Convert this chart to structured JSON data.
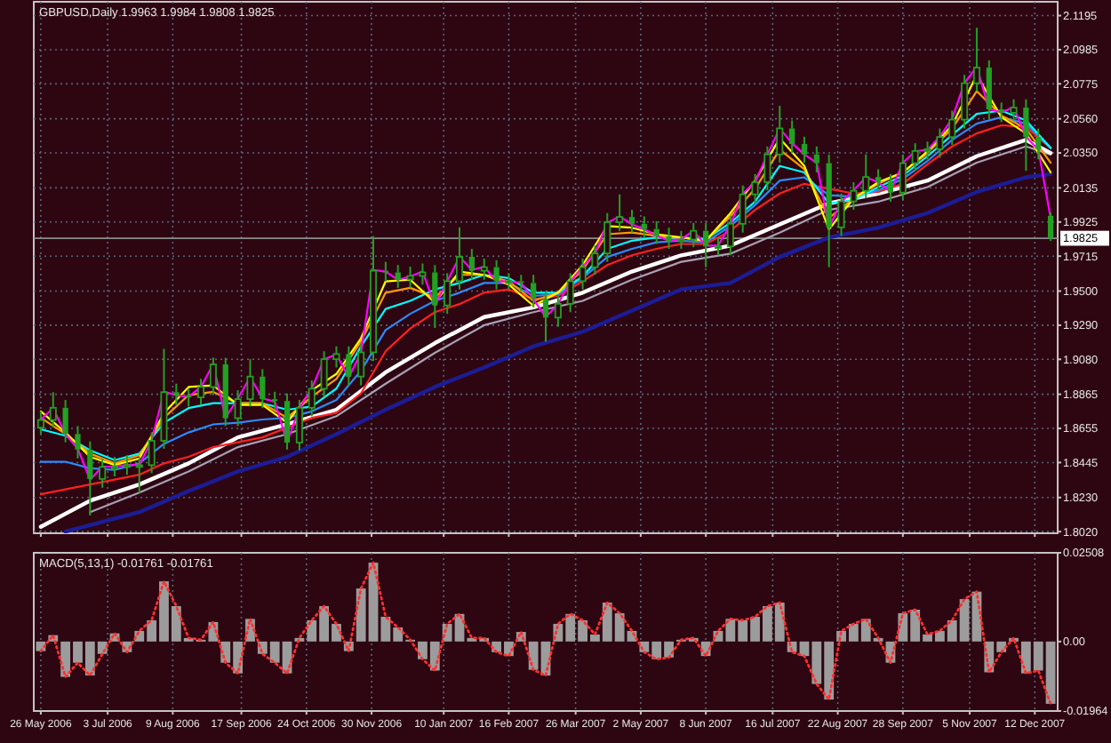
{
  "chart_data": [
    {
      "type": "candlestick",
      "title": "GBPUSD,Daily 1.9963 1.9984 1.9808 1.9825",
      "color": "#22a022",
      "x": [
        "2006-05-26",
        "2006-06-02",
        "2006-06-09",
        "2006-06-16",
        "2006-06-23",
        "2006-06-30",
        "2006-07-07",
        "2006-07-14",
        "2006-07-21",
        "2006-07-28",
        "2006-08-04",
        "2006-08-11",
        "2006-08-18",
        "2006-08-25",
        "2006-09-01",
        "2006-09-08",
        "2006-09-15",
        "2006-09-22",
        "2006-09-29",
        "2006-10-06",
        "2006-10-13",
        "2006-10-20",
        "2006-10-27",
        "2006-11-03",
        "2006-11-10",
        "2006-11-17",
        "2006-11-24",
        "2006-12-01",
        "2006-12-08",
        "2006-12-15",
        "2006-12-22",
        "2006-12-29",
        "2007-01-05",
        "2007-01-12",
        "2007-01-19",
        "2007-01-26",
        "2007-02-02",
        "2007-02-09",
        "2007-02-16",
        "2007-02-23",
        "2007-03-02",
        "2007-03-09",
        "2007-03-16",
        "2007-03-23",
        "2007-03-30",
        "2007-04-06",
        "2007-04-13",
        "2007-04-20",
        "2007-04-27",
        "2007-05-04",
        "2007-05-11",
        "2007-05-18",
        "2007-05-25",
        "2007-06-01",
        "2007-06-08",
        "2007-06-15",
        "2007-06-22",
        "2007-06-29",
        "2007-07-06",
        "2007-07-13",
        "2007-07-20",
        "2007-07-27",
        "2007-08-03",
        "2007-08-10",
        "2007-08-17",
        "2007-08-24",
        "2007-08-31",
        "2007-09-07",
        "2007-09-14",
        "2007-09-21",
        "2007-09-28",
        "2007-10-05",
        "2007-10-12",
        "2007-10-19",
        "2007-10-26",
        "2007-11-02",
        "2007-11-09",
        "2007-11-16",
        "2007-11-23",
        "2007-11-30",
        "2007-12-07",
        "2007-12-14",
        "2007-12-21"
      ],
      "ohlc": [
        [
          1.866,
          1.876,
          1.862,
          1.8707
        ],
        [
          1.8707,
          1.8878,
          1.866,
          1.8782
        ],
        [
          1.8782,
          1.883,
          1.857,
          1.8621
        ],
        [
          1.8621,
          1.867,
          1.847,
          1.8525
        ],
        [
          1.8525,
          1.8575,
          1.8119,
          1.8344
        ],
        [
          1.8344,
          1.847,
          1.829,
          1.8418
        ],
        [
          1.8418,
          1.848,
          1.836,
          1.8418
        ],
        [
          1.8418,
          1.849,
          1.837,
          1.8429
        ],
        [
          1.8429,
          1.848,
          1.8258,
          1.8429
        ],
        [
          1.8429,
          1.863,
          1.838,
          1.8579
        ],
        [
          1.8579,
          1.9145,
          1.853,
          1.8878
        ],
        [
          1.8878,
          1.893,
          1.88,
          1.8856
        ],
        [
          1.8856,
          1.89,
          1.879,
          1.8846
        ],
        [
          1.8846,
          1.896,
          1.88,
          1.891
        ],
        [
          1.891,
          1.9091,
          1.886,
          1.9049
        ],
        [
          1.9049,
          1.909,
          1.867,
          1.8718
        ],
        [
          1.8718,
          1.889,
          1.867,
          1.8835
        ],
        [
          1.8835,
          1.9081,
          1.879,
          1.8974
        ],
        [
          1.8974,
          1.902,
          1.878,
          1.8835
        ],
        [
          1.8835,
          1.888,
          1.877,
          1.8824
        ],
        [
          1.8824,
          1.887,
          1.8525,
          1.8568
        ],
        [
          1.8568,
          1.883,
          1.852,
          1.8782
        ],
        [
          1.8782,
          1.895,
          1.873,
          1.8899
        ],
        [
          1.8899,
          1.913,
          1.885,
          1.9081
        ],
        [
          1.9081,
          1.916,
          1.903,
          1.9113
        ],
        [
          1.9113,
          1.916,
          1.892,
          1.8974
        ],
        [
          1.8974,
          1.918,
          1.892,
          1.9123
        ],
        [
          1.9123,
          1.9839,
          1.907,
          1.9625
        ],
        [
          1.9625,
          1.968,
          1.956,
          1.9615
        ],
        [
          1.9615,
          1.966,
          1.952,
          1.9572
        ],
        [
          1.9572,
          1.965,
          1.952,
          1.9593
        ],
        [
          1.9593,
          1.967,
          1.954,
          1.9615
        ],
        [
          1.9615,
          1.966,
          1.9273,
          1.9412
        ],
        [
          1.9412,
          1.961,
          1.936,
          1.9561
        ],
        [
          1.9561,
          1.9892,
          1.951,
          1.9711
        ],
        [
          1.9711,
          1.976,
          1.957,
          1.9625
        ],
        [
          1.9625,
          1.97,
          1.957,
          1.9647
        ],
        [
          1.9647,
          1.969,
          1.951,
          1.9561
        ],
        [
          1.9561,
          1.961,
          1.951,
          1.9561
        ],
        [
          1.9561,
          1.96,
          1.95,
          1.955
        ],
        [
          1.955,
          1.96,
          1.94,
          1.9454
        ],
        [
          1.9454,
          1.95,
          1.9188,
          1.9337
        ],
        [
          1.9337,
          1.947,
          1.928,
          1.9422
        ],
        [
          1.9422,
          1.961,
          1.937,
          1.9561
        ],
        [
          1.9561,
          1.97,
          1.951,
          1.9647
        ],
        [
          1.9647,
          1.978,
          1.96,
          1.9732
        ],
        [
          1.9732,
          1.998,
          1.968,
          1.9924
        ],
        [
          1.9924,
          2.0095,
          1.987,
          1.9956
        ],
        [
          1.9956,
          2.0,
          1.986,
          1.9914
        ],
        [
          1.9914,
          1.996,
          1.983,
          1.9882
        ],
        [
          1.9882,
          1.993,
          1.979,
          1.9839
        ],
        [
          1.9839,
          1.989,
          1.976,
          1.9807
        ],
        [
          1.9807,
          1.987,
          1.976,
          1.9817
        ],
        [
          1.9817,
          1.992,
          1.977,
          1.9871
        ],
        [
          1.9871,
          1.992,
          1.9647,
          1.9775
        ],
        [
          1.9775,
          1.983,
          1.972,
          1.9775
        ],
        [
          1.9775,
          1.996,
          1.972,
          1.9914
        ],
        [
          1.9914,
          2.015,
          1.986,
          2.0095
        ],
        [
          2.0095,
          2.022,
          2.004,
          2.017
        ],
        [
          2.017,
          2.039,
          2.012,
          2.0341
        ],
        [
          2.0341,
          2.064,
          2.029,
          2.0501
        ],
        [
          2.0501,
          2.055,
          2.035,
          2.0405
        ],
        [
          2.0405,
          2.045,
          2.029,
          2.0341
        ],
        [
          2.0341,
          2.039,
          2.023,
          2.0287
        ],
        [
          2.0287,
          2.034,
          1.9647,
          1.9892
        ],
        [
          1.9892,
          2.01,
          1.984,
          2.0052
        ],
        [
          2.0052,
          2.017,
          2.0,
          2.0117
        ],
        [
          2.0117,
          2.0341,
          2.007,
          2.0202
        ],
        [
          2.0202,
          2.025,
          2.012,
          2.017
        ],
        [
          2.017,
          2.022,
          2.005,
          2.0106
        ],
        [
          2.0106,
          2.034,
          2.006,
          2.0287
        ],
        [
          2.0287,
          2.041,
          2.024,
          2.0362
        ],
        [
          2.0362,
          2.042,
          2.031,
          2.0373
        ],
        [
          2.0373,
          2.05,
          2.032,
          2.0448
        ],
        [
          2.0448,
          2.061,
          2.04,
          2.0555
        ],
        [
          2.0555,
          2.083,
          2.05,
          2.0779
        ],
        [
          2.0779,
          2.112,
          2.073,
          2.0875
        ],
        [
          2.0875,
          2.092,
          2.056,
          2.0618
        ],
        [
          2.0618,
          2.066,
          2.054,
          2.0597
        ],
        [
          2.0597,
          2.068,
          2.055,
          2.0629
        ],
        [
          2.0629,
          2.068,
          2.024,
          2.0448
        ],
        [
          2.0448,
          2.05,
          2.031,
          2.0373
        ],
        [
          1.9963,
          1.9984,
          1.9808,
          1.9825
        ]
      ],
      "series": [
        {
          "type": "line",
          "color": "#1c1c96",
          "x": [
            "2006-06-09",
            "2006-06-23",
            "2006-07-21",
            "2006-08-18",
            "2006-09-15",
            "2006-10-13",
            "2006-11-10",
            "2006-12-08",
            "2007-01-05",
            "2007-02-02",
            "2007-03-02",
            "2007-03-30",
            "2007-04-27",
            "2007-05-25",
            "2007-06-22",
            "2007-07-20",
            "2007-08-17",
            "2007-09-14",
            "2007-10-12",
            "2007-11-09",
            "2007-12-07",
            "2007-12-21"
          ],
          "values": [
            1.802,
            1.806,
            1.814,
            1.827,
            1.839,
            1.848,
            1.862,
            1.877,
            1.891,
            1.903,
            1.916,
            1.925,
            1.938,
            1.951,
            1.955,
            1.971,
            1.983,
            1.989,
            1.998,
            2.011,
            2.02,
            2.022
          ]
        },
        {
          "type": "line",
          "color": "#a8a0b4",
          "x": [
            "2006-06-23",
            "2006-07-21",
            "2006-08-18",
            "2006-09-15",
            "2006-10-13",
            "2006-11-10",
            "2006-12-08",
            "2007-01-05",
            "2007-02-02",
            "2007-03-02",
            "2007-03-30",
            "2007-04-27",
            "2007-05-25",
            "2007-06-22",
            "2007-07-20",
            "2007-08-17",
            "2007-09-14",
            "2007-10-12",
            "2007-11-09",
            "2007-12-07",
            "2007-12-21"
          ],
          "values": [
            1.814,
            1.826,
            1.839,
            1.854,
            1.862,
            1.873,
            1.893,
            1.912,
            1.929,
            1.937,
            1.944,
            1.957,
            1.968,
            1.973,
            1.986,
            2.0,
            2.005,
            2.014,
            2.029,
            2.039,
            2.034
          ]
        },
        {
          "type": "line",
          "color": "#ffffff",
          "x": [
            "2006-05-26",
            "2006-06-23",
            "2006-07-21",
            "2006-08-18",
            "2006-09-15",
            "2006-10-13",
            "2006-11-10",
            "2006-12-08",
            "2007-01-05",
            "2007-02-02",
            "2007-03-02",
            "2007-03-30",
            "2007-04-27",
            "2007-05-25",
            "2007-06-22",
            "2007-07-20",
            "2007-08-17",
            "2007-09-14",
            "2007-10-12",
            "2007-11-09",
            "2007-12-07",
            "2007-12-21"
          ],
          "values": [
            1.805,
            1.821,
            1.831,
            1.844,
            1.86,
            1.868,
            1.877,
            1.9,
            1.918,
            1.934,
            1.94,
            1.949,
            1.962,
            1.972,
            1.978,
            1.991,
            2.004,
            2.01,
            2.018,
            2.033,
            2.043,
            2.035
          ]
        },
        {
          "type": "line",
          "color": "#ff2020",
          "x": [
            "2006-05-26",
            "2006-06-09",
            "2006-06-23",
            "2006-07-07",
            "2006-07-21",
            "2006-08-04",
            "2006-08-18",
            "2006-09-01",
            "2006-09-15",
            "2006-09-29",
            "2006-10-13",
            "2006-10-27",
            "2006-11-10",
            "2006-11-24",
            "2006-12-08",
            "2006-12-22",
            "2007-01-05",
            "2007-01-19",
            "2007-02-02",
            "2007-02-16",
            "2007-03-02",
            "2007-03-16",
            "2007-03-30",
            "2007-04-13",
            "2007-04-27",
            "2007-05-11",
            "2007-05-25",
            "2007-06-08",
            "2007-06-22",
            "2007-07-06",
            "2007-07-20",
            "2007-08-03",
            "2007-08-17",
            "2007-08-31",
            "2007-09-14",
            "2007-09-28",
            "2007-10-12",
            "2007-10-26",
            "2007-11-09",
            "2007-11-23",
            "2007-12-07",
            "2007-12-21"
          ],
          "values": [
            1.825,
            1.828,
            1.831,
            1.834,
            1.837,
            1.844,
            1.848,
            1.854,
            1.857,
            1.86,
            1.866,
            1.872,
            1.875,
            1.887,
            1.913,
            1.927,
            1.937,
            1.942,
            1.949,
            1.951,
            1.945,
            1.947,
            1.956,
            1.966,
            1.972,
            1.976,
            1.979,
            1.979,
            1.987,
            2.0,
            2.01,
            2.016,
            2.013,
            2.01,
            2.011,
            2.016,
            2.028,
            2.039,
            2.047,
            2.052,
            2.051,
            2.038
          ]
        },
        {
          "type": "line",
          "color": "#2a8cff",
          "x": [
            "2006-05-26",
            "2006-06-09",
            "2006-06-23",
            "2006-07-07",
            "2006-07-21",
            "2006-08-04",
            "2006-08-18",
            "2006-09-01",
            "2006-09-15",
            "2006-09-29",
            "2006-10-13",
            "2006-10-27",
            "2006-11-10",
            "2006-11-24",
            "2006-12-08",
            "2006-12-22",
            "2007-01-05",
            "2007-01-19",
            "2007-02-02",
            "2007-02-16",
            "2007-03-02",
            "2007-03-16",
            "2007-03-30",
            "2007-04-13",
            "2007-04-27",
            "2007-05-11",
            "2007-05-25",
            "2007-06-08",
            "2007-06-22",
            "2007-07-06",
            "2007-07-20",
            "2007-08-03",
            "2007-08-17",
            "2007-08-31",
            "2007-09-14",
            "2007-09-28",
            "2007-10-12",
            "2007-10-26",
            "2007-11-09",
            "2007-11-23",
            "2007-12-07",
            "2007-12-21"
          ],
          "values": [
            1.845,
            1.845,
            1.841,
            1.84,
            1.844,
            1.856,
            1.863,
            1.868,
            1.869,
            1.871,
            1.872,
            1.876,
            1.883,
            1.901,
            1.926,
            1.936,
            1.944,
            1.949,
            1.955,
            1.955,
            1.947,
            1.948,
            1.958,
            1.971,
            1.976,
            1.98,
            1.981,
            1.98,
            1.99,
            2.003,
            2.018,
            2.02,
            2.009,
            2.008,
            2.012,
            2.019,
            2.03,
            2.043,
            2.053,
            2.057,
            2.053,
            2.038
          ]
        },
        {
          "type": "line",
          "color": "#00ffff",
          "x": [
            "2006-05-26",
            "2006-06-09",
            "2006-06-23",
            "2006-07-07",
            "2006-07-21",
            "2006-08-04",
            "2006-08-18",
            "2006-09-01",
            "2006-09-15",
            "2006-09-29",
            "2006-10-13",
            "2006-10-27",
            "2006-11-10",
            "2006-11-24",
            "2006-12-08",
            "2006-12-22",
            "2007-01-05",
            "2007-01-19",
            "2007-02-02",
            "2007-02-16",
            "2007-03-02",
            "2007-03-16",
            "2007-03-30",
            "2007-04-13",
            "2007-04-27",
            "2007-05-11",
            "2007-05-25",
            "2007-06-08",
            "2007-06-22",
            "2007-07-06",
            "2007-07-20",
            "2007-08-03",
            "2007-08-17",
            "2007-08-31",
            "2007-09-14",
            "2007-09-28",
            "2007-10-12",
            "2007-10-26",
            "2007-11-09",
            "2007-11-23",
            "2007-12-07",
            "2007-12-21"
          ],
          "values": [
            1.865,
            1.861,
            1.852,
            1.846,
            1.85,
            1.869,
            1.878,
            1.881,
            1.881,
            1.881,
            1.877,
            1.879,
            1.89,
            1.916,
            1.939,
            1.944,
            1.951,
            1.955,
            1.96,
            1.958,
            1.949,
            1.949,
            1.959,
            1.976,
            1.981,
            1.983,
            1.983,
            1.982,
            1.992,
            2.005,
            2.027,
            2.023,
            2.004,
            2.006,
            2.014,
            2.021,
            2.033,
            2.046,
            2.059,
            2.061,
            2.055,
            2.038
          ]
        },
        {
          "type": "line",
          "color": "#ff9900",
          "x": [
            "2006-05-26",
            "2006-06-09",
            "2006-06-23",
            "2006-07-07",
            "2006-07-21",
            "2006-08-04",
            "2006-08-18",
            "2006-09-01",
            "2006-09-15",
            "2006-09-29",
            "2006-10-13",
            "2006-10-27",
            "2006-11-10",
            "2006-11-24",
            "2006-12-08",
            "2006-12-22",
            "2007-01-05",
            "2007-01-19",
            "2007-02-02",
            "2007-02-16",
            "2007-03-02",
            "2007-03-16",
            "2007-03-30",
            "2007-04-13",
            "2007-04-27",
            "2007-05-11",
            "2007-05-25",
            "2007-06-08",
            "2007-06-22",
            "2007-07-06",
            "2007-07-20",
            "2007-08-03",
            "2007-08-17",
            "2007-08-31",
            "2007-09-14",
            "2007-09-28",
            "2007-10-12",
            "2007-10-26",
            "2007-11-09",
            "2007-11-23",
            "2007-12-07",
            "2007-12-21"
          ],
          "values": [
            1.872,
            1.862,
            1.85,
            1.844,
            1.849,
            1.872,
            1.886,
            1.888,
            1.881,
            1.881,
            1.872,
            1.885,
            1.896,
            1.919,
            1.949,
            1.952,
            1.946,
            1.96,
            1.96,
            1.956,
            1.944,
            1.949,
            1.963,
            1.985,
            1.986,
            1.984,
            1.983,
            1.981,
            1.996,
            2.013,
            2.037,
            2.025,
            1.995,
            2.007,
            2.016,
            2.023,
            2.035,
            2.05,
            2.073,
            2.058,
            2.05,
            2.029
          ]
        },
        {
          "type": "line",
          "color": "#ffff00",
          "x": [
            "2006-05-26",
            "2006-06-09",
            "2006-06-23",
            "2006-07-07",
            "2006-07-21",
            "2006-08-04",
            "2006-08-18",
            "2006-09-01",
            "2006-09-15",
            "2006-09-29",
            "2006-10-13",
            "2006-10-27",
            "2006-11-10",
            "2006-11-24",
            "2006-12-08",
            "2006-12-22",
            "2007-01-05",
            "2007-01-19",
            "2007-02-02",
            "2007-02-16",
            "2007-03-02",
            "2007-03-16",
            "2007-03-30",
            "2007-04-13",
            "2007-04-27",
            "2007-05-11",
            "2007-05-25",
            "2007-06-08",
            "2007-06-22",
            "2007-07-06",
            "2007-07-20",
            "2007-08-03",
            "2007-08-17",
            "2007-08-31",
            "2007-09-14",
            "2007-09-28",
            "2007-10-12",
            "2007-10-26",
            "2007-11-09",
            "2007-11-23",
            "2007-12-07",
            "2007-12-21"
          ],
          "values": [
            1.876,
            1.863,
            1.848,
            1.843,
            1.847,
            1.875,
            1.891,
            1.892,
            1.88,
            1.88,
            1.869,
            1.889,
            1.899,
            1.921,
            1.956,
            1.957,
            1.943,
            1.962,
            1.96,
            1.954,
            1.941,
            1.949,
            1.966,
            1.99,
            1.989,
            1.985,
            1.983,
            1.981,
            1.998,
            2.018,
            2.044,
            2.027,
            1.988,
            2.007,
            2.017,
            2.023,
            2.036,
            2.052,
            2.083,
            2.057,
            2.047,
            2.023
          ]
        },
        {
          "type": "line",
          "color": "#ff00ff",
          "values": [
            1.871,
            1.878,
            1.862,
            1.853,
            1.834,
            1.842,
            1.842,
            1.843,
            1.843,
            1.858,
            1.888,
            1.886,
            1.885,
            1.891,
            1.905,
            1.872,
            1.884,
            1.897,
            1.884,
            1.882,
            1.857,
            1.878,
            1.89,
            1.908,
            1.911,
            1.897,
            1.912,
            1.963,
            1.962,
            1.957,
            1.959,
            1.962,
            1.941,
            1.956,
            1.971,
            1.963,
            1.965,
            1.956,
            1.956,
            1.955,
            1.945,
            1.934,
            1.942,
            1.956,
            1.965,
            1.973,
            1.992,
            1.996,
            1.991,
            1.988,
            1.984,
            1.981,
            1.982,
            1.987,
            1.978,
            1.978,
            1.991,
            2.01,
            2.017,
            2.034,
            2.05,
            2.041,
            2.034,
            2.029,
            1.989,
            2.005,
            2.012,
            2.02,
            2.017,
            2.011,
            2.029,
            2.036,
            2.037,
            2.045,
            2.056,
            2.078,
            2.088,
            2.062,
            2.06,
            2.063,
            2.045,
            2.037,
            1.995
          ]
        }
      ],
      "xlim": [
        "2006-05-22",
        "2007-12-25"
      ],
      "xticks": [
        {
          "value": "2006-05-26",
          "label": null
        },
        {
          "value": "2006-07-03",
          "label": null
        },
        {
          "value": "2006-08-09",
          "label": null
        },
        {
          "value": "2006-09-17",
          "label": null
        },
        {
          "value": "2006-10-24",
          "label": null
        },
        {
          "value": "2006-11-30",
          "label": null
        },
        {
          "value": "2007-01-10",
          "label": null
        },
        {
          "value": "2007-02-16",
          "label": null
        },
        {
          "value": "2007-03-26",
          "label": null
        },
        {
          "value": "2007-05-02",
          "label": null
        },
        {
          "value": "2007-06-08",
          "label": null
        },
        {
          "value": "2007-07-16",
          "label": null
        },
        {
          "value": "2007-08-22",
          "label": null
        },
        {
          "value": "2007-09-28",
          "label": null
        },
        {
          "value": "2007-11-05",
          "label": null
        },
        {
          "value": "2007-12-12",
          "label": null
        }
      ],
      "ylim": [
        1.801,
        2.128
      ],
      "yticks": [
        2.1195,
        2.0985,
        2.0775,
        {
          "value": 2.056,
          "label": "2.0560"
        },
        {
          "value": 2.035,
          "label": "2.0350"
        },
        2.0135,
        1.9925,
        1.9715,
        {
          "value": 1.95,
          "label": "1.9500"
        },
        {
          "value": 1.929,
          "label": "1.9290"
        },
        {
          "value": 1.908,
          "label": "1.9080"
        },
        1.8865,
        1.8655,
        1.8445,
        {
          "value": 1.823,
          "label": "1.8230"
        },
        {
          "value": 1.802,
          "label": "1.8020"
        }
      ],
      "ref_lines": [
        {
          "axis": "y",
          "value": 1.9825,
          "label": "1.9825",
          "color": "#8c8c8c"
        }
      ],
      "grid": true,
      "tick_labels": "y"
    },
    {
      "type": "bar",
      "title": "MACD(5,13,1) -0.01761 -0.01761",
      "x": [
        "2006-05-26",
        "2006-06-02",
        "2006-06-09",
        "2006-06-16",
        "2006-06-23",
        "2006-06-30",
        "2006-07-07",
        "2006-07-14",
        "2006-07-21",
        "2006-07-28",
        "2006-08-04",
        "2006-08-11",
        "2006-08-18",
        "2006-08-25",
        "2006-09-01",
        "2006-09-08",
        "2006-09-15",
        "2006-09-22",
        "2006-09-29",
        "2006-10-06",
        "2006-10-13",
        "2006-10-20",
        "2006-10-27",
        "2006-11-03",
        "2006-11-10",
        "2006-11-17",
        "2006-11-24",
        "2006-12-01",
        "2006-12-08",
        "2006-12-15",
        "2006-12-22",
        "2006-12-29",
        "2007-01-05",
        "2007-01-12",
        "2007-01-19",
        "2007-01-26",
        "2007-02-02",
        "2007-02-09",
        "2007-02-16",
        "2007-02-23",
        "2007-03-02",
        "2007-03-09",
        "2007-03-16",
        "2007-03-23",
        "2007-03-30",
        "2007-04-06",
        "2007-04-13",
        "2007-04-20",
        "2007-04-27",
        "2007-05-04",
        "2007-05-11",
        "2007-05-18",
        "2007-05-25",
        "2007-06-01",
        "2007-06-08",
        "2007-06-15",
        "2007-06-22",
        "2007-06-29",
        "2007-07-06",
        "2007-07-13",
        "2007-07-20",
        "2007-07-27",
        "2007-08-03",
        "2007-08-10",
        "2007-08-17",
        "2007-08-24",
        "2007-08-31",
        "2007-09-07",
        "2007-09-14",
        "2007-09-21",
        "2007-09-28",
        "2007-10-05",
        "2007-10-12",
        "2007-10-19",
        "2007-10-26",
        "2007-11-02",
        "2007-11-09",
        "2007-11-16",
        "2007-11-23",
        "2007-11-30",
        "2007-12-07",
        "2007-12-14",
        "2007-12-21"
      ],
      "series": [
        {
          "color": "#9c9c9c",
          "values": [
            -0.0027,
            0.0018,
            -0.01,
            -0.006,
            -0.0096,
            -0.0035,
            0.0023,
            -0.003,
            0.003,
            0.006,
            0.017,
            0.01,
            0.001,
            0.0005,
            0.0055,
            -0.006,
            -0.009,
            0.0064,
            -0.0035,
            -0.006,
            -0.009,
            0.001,
            0.006,
            0.01,
            0.005,
            -0.0027,
            0.015,
            0.0223,
            0.007,
            0.004,
            0.0005,
            -0.005,
            -0.0082,
            0.005,
            0.0078,
            0.001,
            0.001,
            -0.003,
            -0.0041,
            0.0027,
            -0.008,
            -0.0096,
            0.005,
            0.0078,
            0.006,
            0.002,
            0.011,
            0.008,
            0.003,
            -0.003,
            -0.005,
            -0.0045,
            0.0005,
            0.001,
            -0.0041,
            0.003,
            0.0064,
            0.006,
            0.007,
            0.01,
            0.011,
            -0.003,
            -0.0041,
            -0.012,
            -0.0164,
            0.003,
            0.005,
            0.0064,
            0.001,
            -0.006,
            0.008,
            0.009,
            0.002,
            0.003,
            0.006,
            0.012,
            0.0141,
            -0.0087,
            -0.003,
            0.001,
            -0.009,
            -0.0082,
            -0.01761
          ]
        },
        {
          "type": "line",
          "color": "#ff3030",
          "line_style": "dotted",
          "values": [
            -0.0027,
            0.0018,
            -0.01,
            -0.006,
            -0.0096,
            -0.0035,
            0.0023,
            -0.003,
            0.003,
            0.006,
            0.017,
            0.01,
            0.001,
            0.0005,
            0.0055,
            -0.006,
            -0.009,
            0.0064,
            -0.0035,
            -0.006,
            -0.009,
            0.001,
            0.006,
            0.01,
            0.005,
            -0.0027,
            0.015,
            0.0223,
            0.007,
            0.004,
            0.0005,
            -0.005,
            -0.0082,
            0.005,
            0.0078,
            0.001,
            0.001,
            -0.003,
            -0.0041,
            0.0027,
            -0.008,
            -0.0096,
            0.005,
            0.0078,
            0.006,
            0.002,
            0.011,
            0.008,
            0.003,
            -0.003,
            -0.005,
            -0.0045,
            0.0005,
            0.001,
            -0.0041,
            0.003,
            0.0064,
            0.006,
            0.007,
            0.01,
            0.011,
            -0.003,
            -0.0041,
            -0.012,
            -0.0164,
            0.003,
            0.005,
            0.0064,
            0.001,
            -0.006,
            0.008,
            0.009,
            0.002,
            0.003,
            0.006,
            0.012,
            0.0141,
            -0.0087,
            -0.003,
            0.001,
            -0.009,
            -0.0082,
            -0.01761
          ]
        }
      ],
      "xlim": [
        "2006-05-22",
        "2007-12-25"
      ],
      "xticks": [
        {
          "value": "2006-05-26",
          "label": "26 May 2006"
        },
        {
          "value": "2006-07-03",
          "label": "3 Jul 2006"
        },
        {
          "value": "2006-08-09",
          "label": "9 Aug 2006"
        },
        {
          "value": "2006-09-17",
          "label": "17 Sep 2006"
        },
        {
          "value": "2006-10-24",
          "label": "24 Oct 2006"
        },
        {
          "value": "2006-11-30",
          "label": "30 Nov 2006"
        },
        {
          "value": "2007-01-10",
          "label": "10 Jan 2007"
        },
        {
          "value": "2007-02-16",
          "label": "16 Feb 2007"
        },
        {
          "value": "2007-03-26",
          "label": "26 Mar 2007"
        },
        {
          "value": "2007-05-02",
          "label": "2 May 2007"
        },
        {
          "value": "2007-06-08",
          "label": "8 Jun 2007"
        },
        {
          "value": "2007-07-16",
          "label": "16 Jul 2007"
        },
        {
          "value": "2007-08-22",
          "label": "22 Aug 2007"
        },
        {
          "value": "2007-09-28",
          "label": "28 Sep 2007"
        },
        {
          "value": "2007-11-05",
          "label": "5 Nov 2007"
        },
        {
          "value": "2007-12-12",
          "label": "12 Dec 2007"
        }
      ],
      "ylim": [
        -0.01964,
        0.02508
      ],
      "yticks": [
        0.02508,
        {
          "value": 0,
          "label": "0.00"
        },
        -0.01964
      ],
      "grid": "x"
    }
  ]
}
